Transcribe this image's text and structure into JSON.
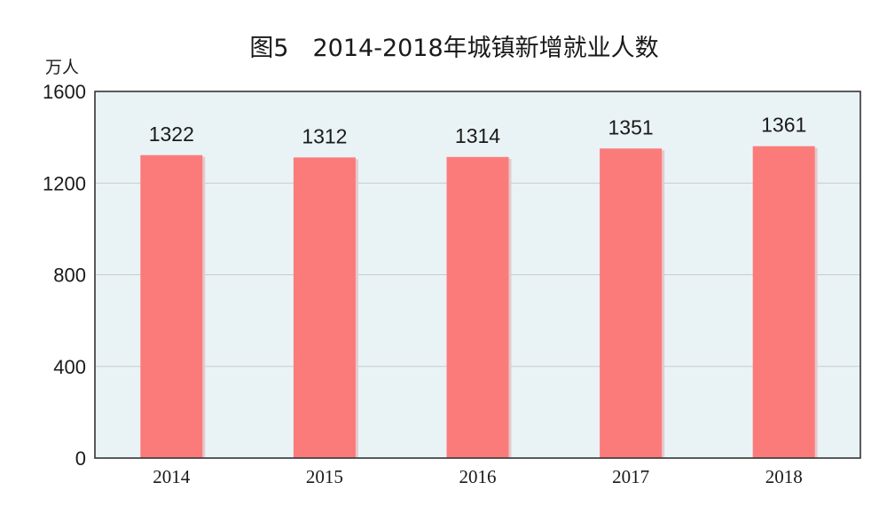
{
  "chart_data": {
    "type": "bar",
    "title": "图5　2014-2018年城镇新增就业人数",
    "ylabel": "万人",
    "xlabel": "",
    "categories": [
      "2014",
      "2015",
      "2016",
      "2017",
      "2018"
    ],
    "values": [
      1322,
      1312,
      1314,
      1351,
      1361
    ],
    "ylim": [
      0,
      1600
    ],
    "yticks": [
      0,
      400,
      800,
      1200,
      1600
    ],
    "grid": true,
    "legend": "none",
    "colors": {
      "bar": "#fb7b7b",
      "bar_shadow": "#e4c9cc",
      "plot_background": "#e9f3f6",
      "gridline": "#c9c9c9",
      "axis": "#333333",
      "text": "#1a1a1a"
    }
  }
}
